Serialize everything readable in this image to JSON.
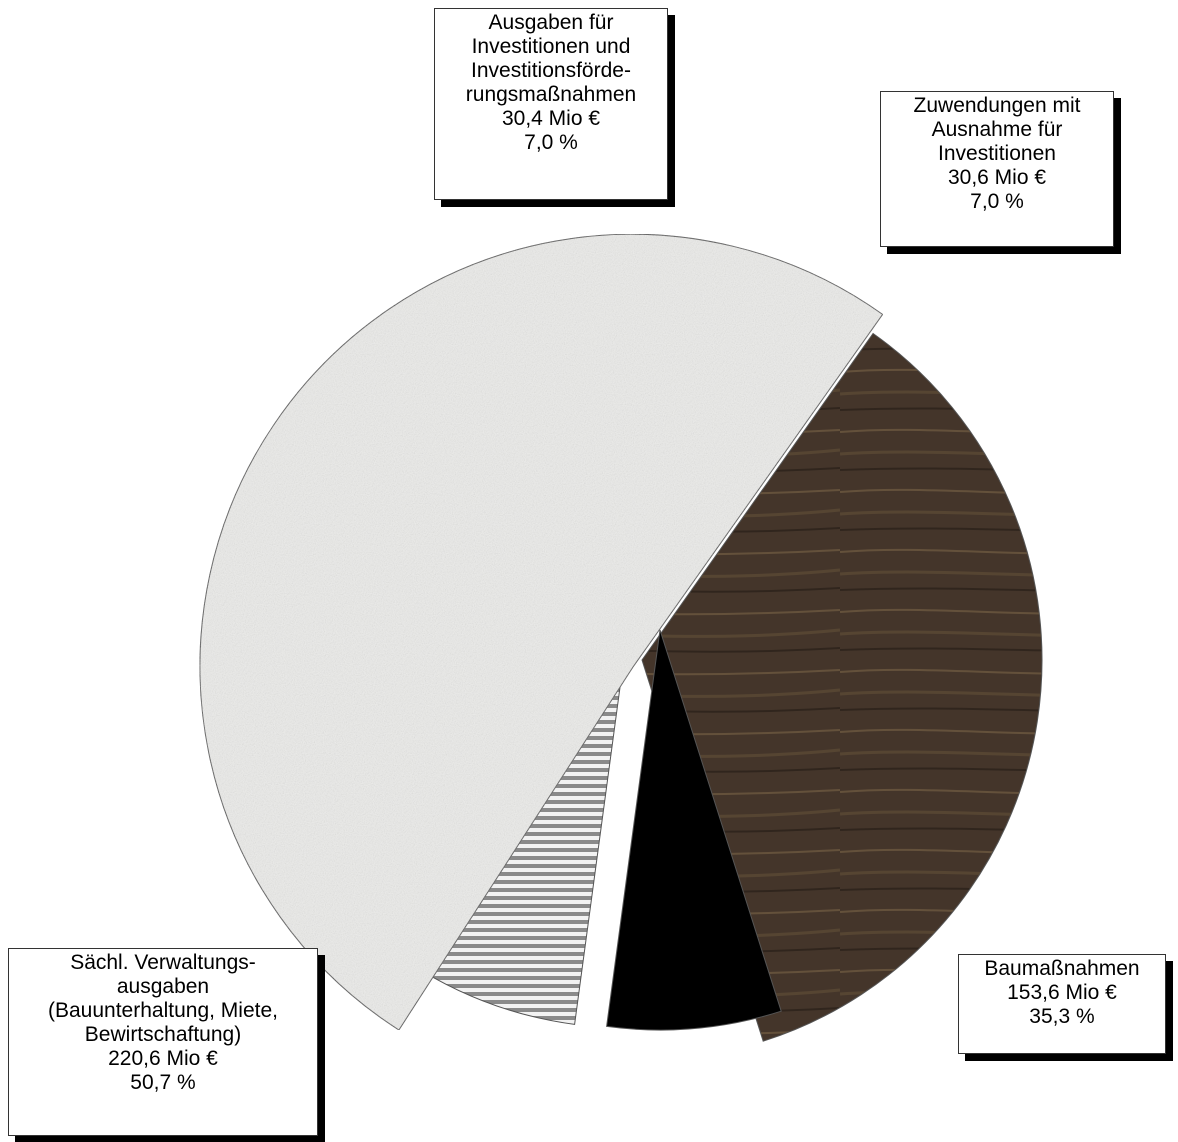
{
  "chart_data": {
    "type": "pie",
    "title": "",
    "exploded": true,
    "slices": [
      {
        "label_lines": [
          "Baumaßnahmen"
        ],
        "value": 153.6,
        "value_text": "153,6 Mio €",
        "percent": 35.3,
        "percent_text": "35,3 %",
        "fill": "wood-texture",
        "color": "#4a3a2c"
      },
      {
        "label_lines": [
          "Zuwendungen mit",
          "Ausnahme für",
          "Investitionen"
        ],
        "value": 30.6,
        "value_text": "30,6 Mio €",
        "percent": 7.0,
        "percent_text": "7,0 %",
        "fill": "solid",
        "color": "#000000"
      },
      {
        "label_lines": [
          "Ausgaben für",
          "Investitionen und",
          "Investitionsförde-",
          "rungsmaßnahmen"
        ],
        "value": 30.4,
        "value_text": "30,4 Mio €",
        "percent": 7.0,
        "percent_text": "7,0 %",
        "fill": "horizontal-stripes",
        "color": "#8a8a8a"
      },
      {
        "label_lines": [
          "Sächl. Verwaltungs-",
          "ausgaben",
          "(Bauunterhaltung, Miete,",
          "Bewirtschaftung)"
        ],
        "value": 220.6,
        "value_text": "220,6 Mio €",
        "percent": 50.7,
        "percent_text": "50,7 %",
        "fill": "speckle-texture",
        "color": "#ececea"
      }
    ]
  }
}
